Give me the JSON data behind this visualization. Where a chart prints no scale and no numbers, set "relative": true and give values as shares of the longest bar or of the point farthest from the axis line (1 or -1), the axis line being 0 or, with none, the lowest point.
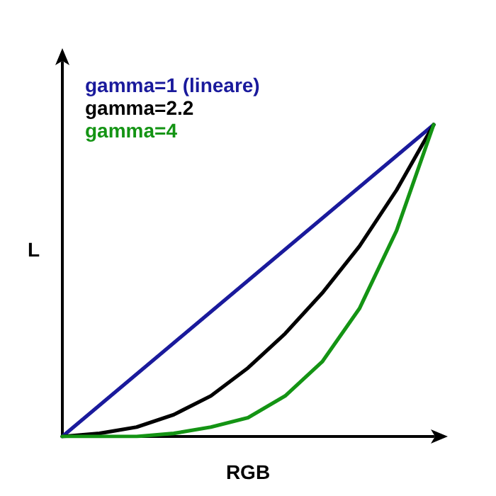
{
  "chart_data": {
    "type": "line",
    "relative": true,
    "xlabel": "RGB",
    "ylabel": "L",
    "legend": "top left",
    "marker": "none",
    "line_style": "solid",
    "grid": false,
    "categories": [
      null,
      null,
      null,
      null,
      null,
      null,
      null,
      null,
      null,
      null,
      null
    ],
    "series": [
      {
        "name": "gamma=1 (lineare)",
        "color": "#1a1a9c",
        "values": [
          0,
          0.1,
          0.2,
          0.3,
          0.4,
          0.5,
          0.6,
          0.7,
          0.8,
          0.9,
          1
        ]
      },
      {
        "name": "gamma=2.2",
        "color": "#000000",
        "values": [
          0,
          0.01,
          0.03,
          0.07,
          0.13,
          0.22,
          0.33,
          0.46,
          0.61,
          0.79,
          1
        ]
      },
      {
        "name": "gamma=4",
        "color": "#149414",
        "values": [
          0,
          0,
          0,
          0.01,
          0.03,
          0.06,
          0.13,
          0.24,
          0.41,
          0.66,
          1
        ]
      }
    ]
  }
}
